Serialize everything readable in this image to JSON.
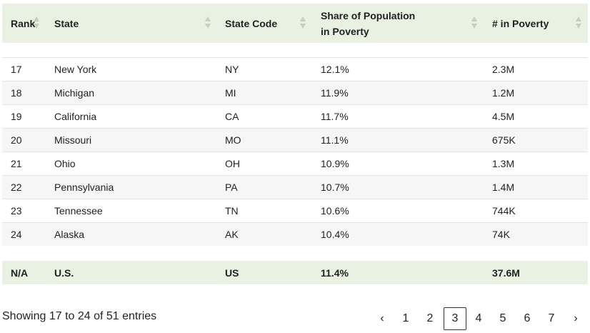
{
  "columns": [
    {
      "label_line1": "Rank",
      "label_line2": ""
    },
    {
      "label_line1": "State",
      "label_line2": ""
    },
    {
      "label_line1": "State Code",
      "label_line2": ""
    },
    {
      "label_line1": "Share of Population",
      "label_line2": "in Poverty"
    },
    {
      "label_line1": "# in Poverty",
      "label_line2": ""
    }
  ],
  "rows": [
    {
      "rank": "17",
      "state": "New York",
      "code": "NY",
      "share": "12.1%",
      "count": "2.3M"
    },
    {
      "rank": "18",
      "state": "Michigan",
      "code": "MI",
      "share": "11.9%",
      "count": "1.2M"
    },
    {
      "rank": "19",
      "state": "California",
      "code": "CA",
      "share": "11.7%",
      "count": "4.5M"
    },
    {
      "rank": "20",
      "state": "Missouri",
      "code": "MO",
      "share": "11.1%",
      "count": "675K"
    },
    {
      "rank": "21",
      "state": "Ohio",
      "code": "OH",
      "share": "10.9%",
      "count": "1.3M"
    },
    {
      "rank": "22",
      "state": "Pennsylvania",
      "code": "PA",
      "share": "10.7%",
      "count": "1.4M"
    },
    {
      "rank": "23",
      "state": "Tennessee",
      "code": "TN",
      "share": "10.6%",
      "count": "744K"
    },
    {
      "rank": "24",
      "state": "Alaska",
      "code": "AK",
      "share": "10.4%",
      "count": "74K"
    }
  ],
  "total": {
    "rank": "N/A",
    "state": "U.S.",
    "code": "US",
    "share": "11.4%",
    "count": "37.6M"
  },
  "info_text": "Showing 17 to 24 of 51 entries",
  "pagination": {
    "prev": "‹",
    "next": "›",
    "pages": [
      "1",
      "2",
      "3",
      "4",
      "5",
      "6",
      "7"
    ],
    "current": "3"
  },
  "colors": {
    "header_bg": "#e8f1e2",
    "stripe_bg": "#f6f6f6",
    "border": "#e4e4e4"
  }
}
